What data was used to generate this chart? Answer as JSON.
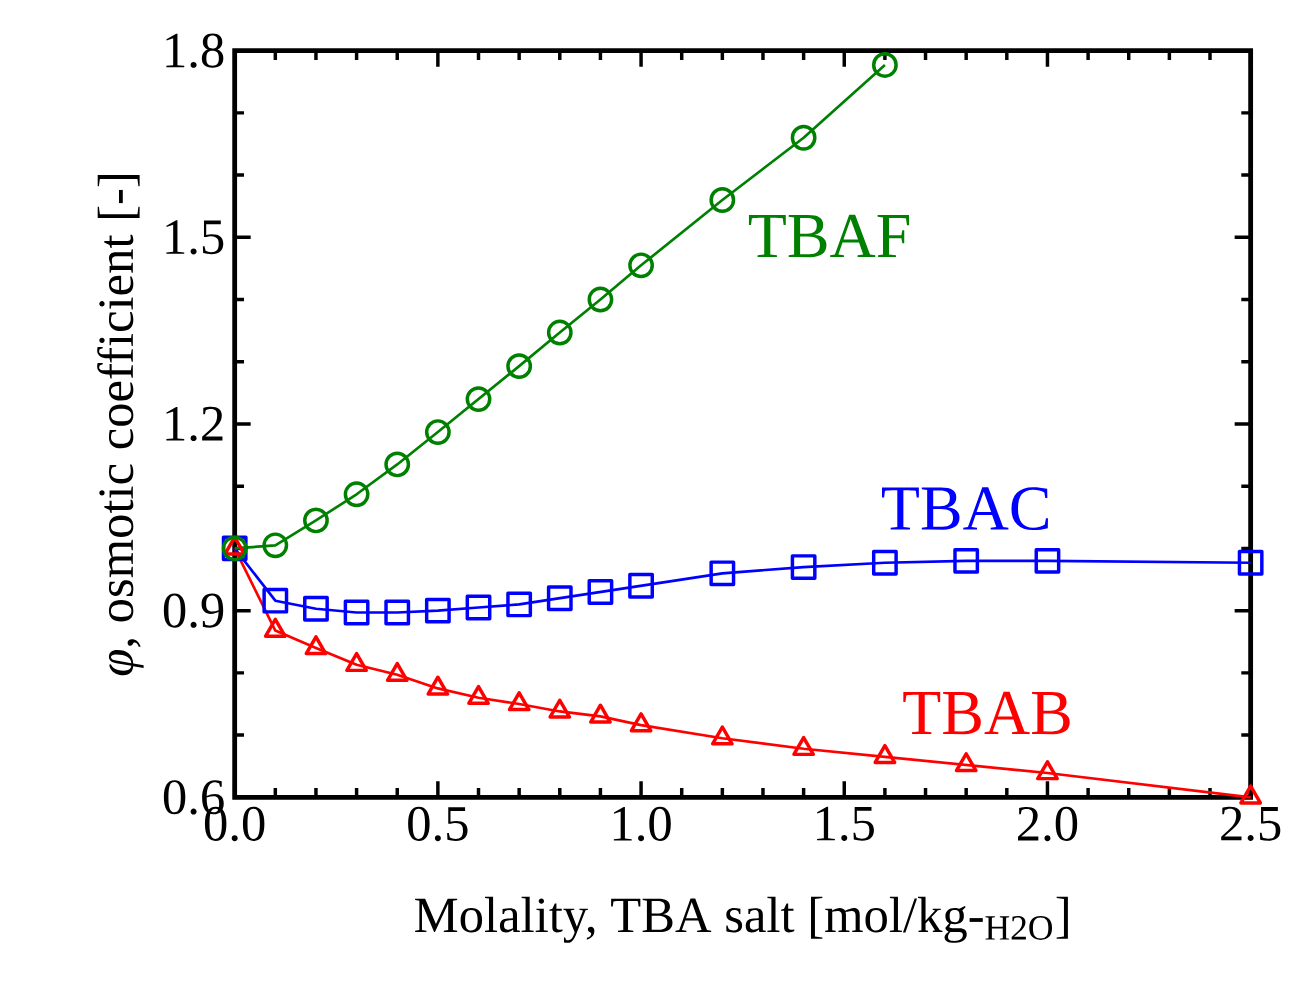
{
  "chart_data": {
    "type": "line",
    "xlabel": "Molality, TBA salt [mol/kg-$_{H2O}$]",
    "ylabel": "*φ*, osmotic coefficient [-]",
    "xlim": [
      0,
      2.5
    ],
    "ylim": [
      0.6,
      1.8
    ],
    "xticks": [
      {
        "value": 0,
        "label": "0.0"
      },
      0.5,
      {
        "value": 1,
        "label": "1.0"
      },
      1.5,
      {
        "value": 2,
        "label": "2.0"
      },
      2.5
    ],
    "yticks": [
      0.6,
      0.9,
      1.2,
      1.5,
      1.8
    ],
    "grid": false,
    "series": [
      {
        "name": "TBAF",
        "color": "#008000",
        "marker": "circle",
        "x": [
          0,
          0.1,
          0.2,
          0.3,
          0.4,
          0.5,
          0.6,
          0.7,
          0.8,
          0.9,
          1.0,
          1.2,
          1.4,
          1.6
        ],
        "values": [
          1.0,
          1.005,
          1.045,
          1.087,
          1.135,
          1.187,
          1.24,
          1.293,
          1.347,
          1.4,
          1.455,
          1.56,
          1.66,
          1.777
        ]
      },
      {
        "name": "TBAC",
        "color": "#0000ff",
        "marker": "square",
        "x": [
          0,
          0.1,
          0.2,
          0.3,
          0.4,
          0.5,
          0.6,
          0.7,
          0.8,
          0.9,
          1.0,
          1.2,
          1.4,
          1.6,
          1.8,
          2.0,
          2.5
        ],
        "values": [
          1.0,
          0.916,
          0.903,
          0.897,
          0.897,
          0.9,
          0.905,
          0.91,
          0.92,
          0.93,
          0.94,
          0.96,
          0.97,
          0.977,
          0.98,
          0.98,
          0.977
        ]
      },
      {
        "name": "TBAB",
        "color": "#ff0000",
        "marker": "triangle",
        "x": [
          0,
          0.1,
          0.2,
          0.3,
          0.4,
          0.5,
          0.6,
          0.7,
          0.8,
          0.9,
          1.0,
          1.2,
          1.4,
          1.6,
          1.8,
          2.0,
          2.5
        ],
        "values": [
          1.0,
          0.868,
          0.84,
          0.813,
          0.797,
          0.775,
          0.76,
          0.75,
          0.738,
          0.73,
          0.716,
          0.695,
          0.678,
          0.665,
          0.652,
          0.639,
          0.6
        ]
      }
    ]
  }
}
